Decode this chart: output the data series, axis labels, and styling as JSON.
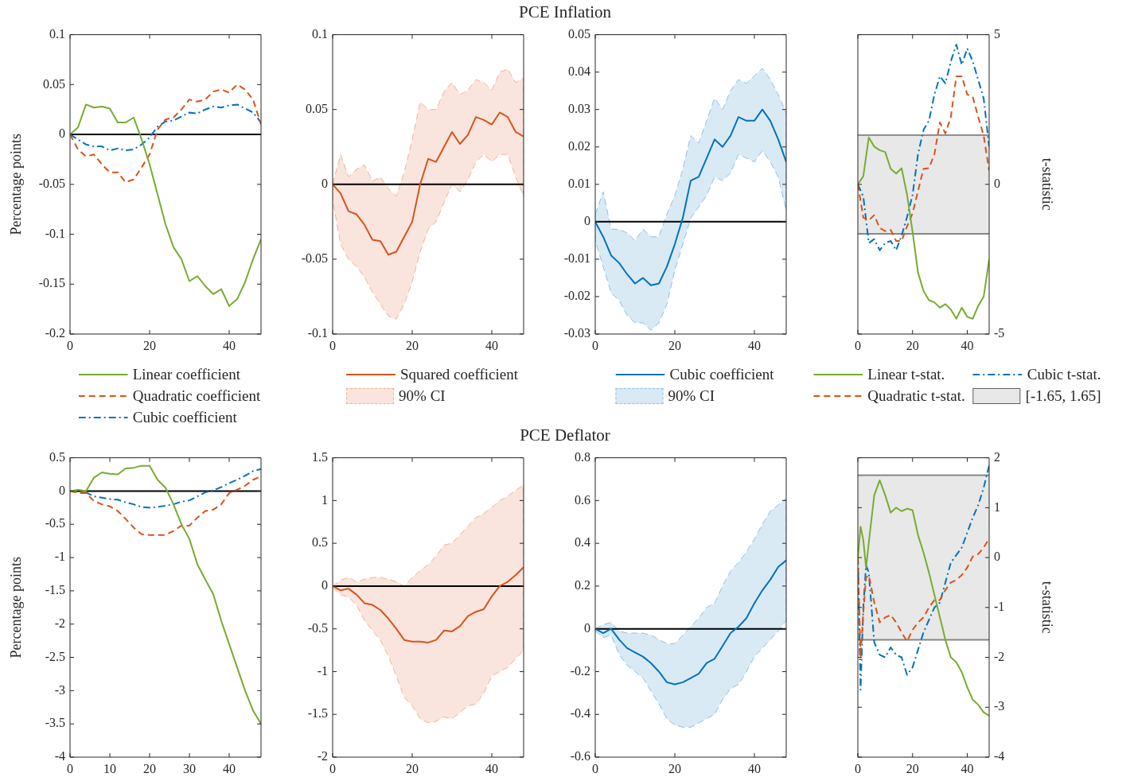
{
  "chart_data": [
    {
      "type": "line",
      "ylabel": "Percentage points",
      "x": [
        0,
        2,
        4,
        6,
        8,
        10,
        12,
        14,
        16,
        18,
        20,
        22,
        24,
        26,
        28,
        30,
        32,
        34,
        36,
        38,
        40,
        42,
        44,
        46,
        48
      ],
      "xlim": [
        0,
        48
      ],
      "xticks": [
        0,
        20,
        40
      ],
      "ylim": [
        -0.2,
        0.1
      ],
      "yticks": [
        -0.2,
        -0.15,
        -0.1,
        -0.05,
        0,
        0.05,
        0.1
      ],
      "legend": "bottom",
      "ref_lines": [
        {
          "axis": "y",
          "value": 0,
          "color": "#000000"
        }
      ],
      "series": [
        {
          "name": "Linear coefficient",
          "color": "#77ac30",
          "line_style": "solid",
          "values": [
            0,
            0.007,
            0.03,
            0.027,
            0.028,
            0.026,
            0.012,
            0.012,
            0.017,
            -0.005,
            -0.03,
            -0.06,
            -0.09,
            -0.113,
            -0.125,
            -0.147,
            -0.142,
            -0.152,
            -0.16,
            -0.155,
            -0.172,
            -0.165,
            -0.148,
            -0.125,
            -0.105
          ]
        },
        {
          "name": "Quadratic coefficient",
          "color": "#d95319",
          "line_style": "dashed",
          "values": [
            0,
            -0.015,
            -0.022,
            -0.02,
            -0.03,
            -0.038,
            -0.038,
            -0.048,
            -0.045,
            -0.033,
            -0.02,
            0.005,
            0.015,
            0.017,
            0.025,
            0.035,
            0.033,
            0.035,
            0.043,
            0.045,
            0.042,
            0.05,
            0.045,
            0.035,
            0.01
          ]
        },
        {
          "name": "Cubic coefficient",
          "color": "#0072bd",
          "line_style": "dashdot",
          "values": [
            0,
            -0.005,
            -0.01,
            -0.012,
            -0.012,
            -0.016,
            -0.014,
            -0.016,
            -0.015,
            -0.01,
            -0.003,
            0.008,
            0.013,
            0.014,
            0.018,
            0.022,
            0.021,
            0.025,
            0.028,
            0.027,
            0.029,
            0.03,
            0.026,
            0.022,
            0.012
          ]
        }
      ]
    },
    {
      "type": "line",
      "title": "PCE Inflation",
      "x": [
        0,
        2,
        4,
        6,
        8,
        10,
        12,
        14,
        16,
        18,
        20,
        22,
        24,
        26,
        28,
        30,
        32,
        34,
        36,
        38,
        40,
        42,
        44,
        46,
        48
      ],
      "xlim": [
        0,
        48
      ],
      "xticks": [
        0,
        20,
        40
      ],
      "ylim": [
        -0.1,
        0.1
      ],
      "yticks": [
        -0.1,
        -0.05,
        0,
        0.05,
        0.1
      ],
      "legend": "bottom",
      "annotations": [
        "90% CI"
      ],
      "ref_lines": [
        {
          "axis": "y",
          "value": 0,
          "color": "#000000"
        }
      ],
      "series": [
        {
          "name": "Squared coefficient",
          "color": "#d95319",
          "line_style": "solid",
          "values": [
            0,
            -0.006,
            -0.018,
            -0.02,
            -0.027,
            -0.037,
            -0.038,
            -0.047,
            -0.045,
            -0.035,
            -0.025,
            0,
            0.017,
            0.015,
            0.025,
            0.035,
            0.027,
            0.033,
            0.045,
            0.043,
            0.04,
            0.048,
            0.045,
            0.035,
            0.032
          ],
          "lower": [
            -0.01,
            -0.04,
            -0.05,
            -0.055,
            -0.062,
            -0.072,
            -0.08,
            -0.088,
            -0.09,
            -0.08,
            -0.065,
            -0.045,
            -0.03,
            -0.025,
            -0.012,
            0,
            -0.005,
            0.003,
            0.015,
            0.02,
            0.015,
            0.02,
            0.02,
            0.005,
            -0.008
          ],
          "upper": [
            0,
            0.02,
            0.005,
            0.01,
            0.013,
            0.002,
            0.005,
            -0.003,
            -0.008,
            0.008,
            0.03,
            0.055,
            0.05,
            0.05,
            0.062,
            0.068,
            0.06,
            0.063,
            0.07,
            0.068,
            0.063,
            0.075,
            0.077,
            0.068,
            0.071
          ]
        }
      ]
    },
    {
      "type": "line",
      "x": [
        0,
        2,
        4,
        6,
        8,
        10,
        12,
        14,
        16,
        18,
        20,
        22,
        24,
        26,
        28,
        30,
        32,
        34,
        36,
        38,
        40,
        42,
        44,
        46,
        48
      ],
      "xlim": [
        0,
        48
      ],
      "xticks": [
        0,
        20,
        40
      ],
      "ylim": [
        -0.03,
        0.05
      ],
      "yticks": [
        -0.03,
        -0.02,
        -0.01,
        0,
        0.01,
        0.02,
        0.03,
        0.04,
        0.05
      ],
      "legend": "bottom",
      "annotations": [
        "90% CI"
      ],
      "ref_lines": [
        {
          "axis": "y",
          "value": 0,
          "color": "#000000"
        }
      ],
      "series": [
        {
          "name": "Cubic coefficient",
          "color": "#0072bd",
          "line_style": "solid",
          "values": [
            0,
            -0.004,
            -0.009,
            -0.011,
            -0.014,
            -0.0165,
            -0.015,
            -0.017,
            -0.0165,
            -0.012,
            -0.006,
            0.001,
            0.011,
            0.012,
            0.017,
            0.022,
            0.02,
            0.023,
            0.028,
            0.027,
            0.027,
            0.03,
            0.027,
            0.022,
            0.016
          ],
          "lower": [
            -0.005,
            -0.012,
            -0.019,
            -0.021,
            -0.025,
            -0.027,
            -0.027,
            -0.029,
            -0.027,
            -0.022,
            -0.013,
            -0.006,
            0.001,
            0.004,
            0.007,
            0.012,
            0.011,
            0.013,
            0.018,
            0.017,
            0.016,
            0.019,
            0.016,
            0.012,
            0.003
          ],
          "upper": [
            0.002,
            0.008,
            -0.002,
            -0.002,
            -0.003,
            -0.005,
            -0.002,
            -0.004,
            -0.004,
            0.002,
            0.007,
            0.014,
            0.023,
            0.021,
            0.027,
            0.033,
            0.03,
            0.035,
            0.038,
            0.037,
            0.039,
            0.041,
            0.038,
            0.034,
            0.029
          ]
        }
      ]
    },
    {
      "type": "line",
      "ylabel": "t-statistic",
      "x": [
        0,
        2,
        4,
        6,
        8,
        10,
        12,
        14,
        16,
        18,
        20,
        22,
        24,
        26,
        28,
        30,
        32,
        34,
        36,
        38,
        40,
        42,
        44,
        46,
        48
      ],
      "xlim": [
        0,
        48
      ],
      "xticks": [
        0,
        20,
        40
      ],
      "ylim": [
        -5,
        5
      ],
      "yticks": [
        -5,
        0,
        5
      ],
      "legend": "bottom",
      "bands": [
        {
          "axis": "y",
          "from": -1.65,
          "to": 1.65,
          "label": "[-1.65, 1.65]",
          "color": "#e8e8e8"
        }
      ],
      "ref_lines": [
        {
          "axis": "y",
          "value": -1.65,
          "color": "#808080"
        },
        {
          "axis": "y",
          "value": 1.65,
          "color": "#808080"
        }
      ],
      "series": [
        {
          "name": "Linear t-stat.",
          "color": "#77ac30",
          "line_style": "solid",
          "values": [
            0,
            0.27,
            1.57,
            1.26,
            1.14,
            1.08,
            0.52,
            0.36,
            0.54,
            -0.35,
            -1.58,
            -2.95,
            -3.56,
            -3.87,
            -3.94,
            -4.12,
            -4,
            -4.18,
            -4.49,
            -4.12,
            -4.43,
            -4.49,
            -4.06,
            -3.75,
            -2.51
          ]
        },
        {
          "name": "Quadratic t-stat.",
          "color": "#d95319",
          "line_style": "dashed",
          "values": [
            0,
            -1.11,
            -1.2,
            -1.03,
            -1.46,
            -1.56,
            -1.52,
            -1.89,
            -1.89,
            -1.4,
            -0.97,
            -0.22,
            0.52,
            0.54,
            1.01,
            2.07,
            1.7,
            2.25,
            3.61,
            3.61,
            3,
            2.93,
            2.25,
            1.63,
            0.46
          ]
        },
        {
          "name": "Cubic t-stat.",
          "color": "#0072bd",
          "line_style": "dashdot",
          "values": [
            0,
            -0.41,
            -1.96,
            -1.83,
            -2.2,
            -1.96,
            -1.89,
            -2.2,
            -1.71,
            -1.09,
            -0.35,
            1.01,
            1.82,
            2.13,
            3,
            3.61,
            3.37,
            4.11,
            4.67,
            3.99,
            4.54,
            4.11,
            3.49,
            2.87,
            1.26
          ]
        }
      ]
    },
    {
      "type": "line",
      "ylabel": "Percentage points",
      "x": [
        0,
        2,
        4,
        6,
        8,
        10,
        12,
        14,
        16,
        18,
        20,
        22,
        24,
        26,
        28,
        30,
        32,
        34,
        36,
        38,
        40,
        42,
        44,
        46,
        48
      ],
      "xlim": [
        0,
        48
      ],
      "xticks": [
        0,
        10,
        20,
        30,
        40
      ],
      "ylim": [
        -4,
        0.5
      ],
      "yticks": [
        -4,
        -3.5,
        -3,
        -2.5,
        -2,
        -1.5,
        -1,
        -0.5,
        0,
        0.5
      ],
      "ref_lines": [
        {
          "axis": "y",
          "value": 0,
          "color": "#000000"
        }
      ],
      "series": [
        {
          "color": "#77ac30",
          "line_style": "solid",
          "values": [
            0,
            0.02,
            0,
            0.2,
            0.28,
            0.26,
            0.25,
            0.34,
            0.35,
            0.38,
            0.38,
            0.17,
            0.05,
            -0.2,
            -0.5,
            -0.72,
            -1.1,
            -1.33,
            -1.55,
            -1.95,
            -2.3,
            -2.65,
            -3,
            -3.3,
            -3.5
          ]
        },
        {
          "color": "#d95319",
          "line_style": "dashed",
          "values": [
            0,
            -0.03,
            -0.03,
            -0.15,
            -0.2,
            -0.23,
            -0.3,
            -0.42,
            -0.55,
            -0.65,
            -0.66,
            -0.66,
            -0.66,
            -0.6,
            -0.52,
            -0.52,
            -0.4,
            -0.3,
            -0.28,
            -0.2,
            -0.03,
            0.02,
            0.08,
            0.17,
            0.22
          ]
        },
        {
          "color": "#0072bd",
          "line_style": "dashdot",
          "values": [
            0,
            0,
            -0.02,
            -0.08,
            -0.1,
            -0.12,
            -0.13,
            -0.17,
            -0.2,
            -0.24,
            -0.25,
            -0.24,
            -0.22,
            -0.2,
            -0.16,
            -0.14,
            -0.08,
            -0.02,
            0.01,
            0.06,
            0.12,
            0.17,
            0.23,
            0.3,
            0.33
          ]
        }
      ]
    },
    {
      "type": "line",
      "title": "PCE Deflator",
      "x": [
        0,
        2,
        4,
        6,
        8,
        10,
        12,
        14,
        16,
        18,
        20,
        22,
        24,
        26,
        28,
        30,
        32,
        34,
        36,
        38,
        40,
        42,
        44,
        46,
        48
      ],
      "xlim": [
        0,
        48
      ],
      "xticks": [
        0,
        20,
        40
      ],
      "ylim": [
        -2,
        1.5
      ],
      "yticks": [
        -2,
        -1.5,
        -1,
        -0.5,
        0,
        0.5,
        1,
        1.5
      ],
      "ref_lines": [
        {
          "axis": "y",
          "value": 0,
          "color": "#000000"
        }
      ],
      "series": [
        {
          "color": "#d95319",
          "line_style": "solid",
          "values": [
            0,
            -0.05,
            -0.03,
            -0.1,
            -0.2,
            -0.22,
            -0.28,
            -0.38,
            -0.5,
            -0.63,
            -0.65,
            -0.65,
            -0.66,
            -0.63,
            -0.52,
            -0.53,
            -0.47,
            -0.35,
            -0.3,
            -0.27,
            -0.12,
            0,
            0.05,
            0.13,
            0.22
          ],
          "lower": [
            -0.02,
            -0.1,
            -0.13,
            -0.22,
            -0.4,
            -0.52,
            -0.63,
            -0.82,
            -1.05,
            -1.3,
            -1.4,
            -1.55,
            -1.6,
            -1.58,
            -1.53,
            -1.55,
            -1.48,
            -1.4,
            -1.38,
            -1.25,
            -1.05,
            -1,
            -0.95,
            -0.85,
            -0.75
          ],
          "upper": [
            0,
            0.07,
            0.1,
            0.05,
            0.08,
            0.1,
            0.1,
            0.08,
            0.05,
            0,
            0.1,
            0.18,
            0.25,
            0.35,
            0.48,
            0.5,
            0.6,
            0.7,
            0.8,
            0.85,
            0.92,
            1,
            1.05,
            1.12,
            1.18
          ]
        }
      ]
    },
    {
      "type": "line",
      "x": [
        0,
        2,
        4,
        6,
        8,
        10,
        12,
        14,
        16,
        18,
        20,
        22,
        24,
        26,
        28,
        30,
        32,
        34,
        36,
        38,
        40,
        42,
        44,
        46,
        48
      ],
      "xlim": [
        0,
        48
      ],
      "xticks": [
        0,
        20,
        40
      ],
      "ylim": [
        -0.6,
        0.8
      ],
      "yticks": [
        -0.6,
        -0.4,
        -0.2,
        0,
        0.2,
        0.4,
        0.6,
        0.8
      ],
      "ref_lines": [
        {
          "axis": "y",
          "value": 0,
          "color": "#000000"
        }
      ],
      "series": [
        {
          "color": "#0072bd",
          "line_style": "solid",
          "values": [
            0,
            -0.02,
            0,
            -0.05,
            -0.09,
            -0.11,
            -0.13,
            -0.16,
            -0.2,
            -0.25,
            -0.26,
            -0.25,
            -0.23,
            -0.21,
            -0.16,
            -0.14,
            -0.08,
            -0.02,
            0.01,
            0.05,
            0.12,
            0.18,
            0.23,
            0.29,
            0.32
          ],
          "lower": [
            -0.01,
            -0.04,
            -0.03,
            -0.12,
            -0.17,
            -0.2,
            -0.23,
            -0.29,
            -0.35,
            -0.42,
            -0.45,
            -0.46,
            -0.46,
            -0.44,
            -0.42,
            -0.4,
            -0.33,
            -0.28,
            -0.26,
            -0.2,
            -0.13,
            -0.09,
            -0.05,
            -0.01,
            0.04
          ],
          "upper": [
            0,
            0.02,
            0.03,
            -0.01,
            -0.02,
            -0.02,
            -0.02,
            -0.03,
            -0.05,
            -0.07,
            -0.07,
            -0.03,
            0.01,
            0.05,
            0.1,
            0.12,
            0.2,
            0.27,
            0.31,
            0.36,
            0.42,
            0.49,
            0.55,
            0.58,
            0.61
          ]
        }
      ]
    },
    {
      "type": "line",
      "ylabel": "t-statistic",
      "x": [
        0,
        1,
        2,
        3,
        4,
        6,
        8,
        10,
        12,
        14,
        16,
        18,
        20,
        22,
        24,
        26,
        28,
        30,
        32,
        34,
        36,
        38,
        40,
        42,
        44,
        46,
        48
      ],
      "xlim": [
        0,
        48
      ],
      "xticks": [
        0,
        20,
        40
      ],
      "ylim": [
        -4,
        2
      ],
      "yticks": [
        -4,
        -3,
        -2,
        -1,
        0,
        1,
        2
      ],
      "bands": [
        {
          "axis": "y",
          "from": -1.65,
          "to": 1.65,
          "color": "#e8e8e8"
        }
      ],
      "ref_lines": [
        {
          "axis": "y",
          "value": -1.65,
          "color": "#808080"
        },
        {
          "axis": "y",
          "value": 1.65,
          "color": "#808080"
        }
      ],
      "series": [
        {
          "color": "#77ac30",
          "line_style": "solid",
          "values": [
            0,
            0.62,
            0.35,
            -0.2,
            0.3,
            1.25,
            1.55,
            1.25,
            0.9,
            1,
            0.93,
            0.98,
            0.95,
            0.45,
            0.1,
            -0.3,
            -0.75,
            -1.2,
            -1.65,
            -2,
            -2.1,
            -2.3,
            -2.6,
            -2.85,
            -2.95,
            -3.1,
            -3.17
          ]
        },
        {
          "color": "#d95319",
          "line_style": "dashed",
          "values": [
            0,
            -2,
            -1.1,
            -0.4,
            -0.35,
            -0.9,
            -1.3,
            -1.2,
            -1.15,
            -1.3,
            -1.5,
            -1.68,
            -1.45,
            -1.3,
            -1.2,
            -1,
            -0.85,
            -0.85,
            -0.65,
            -0.5,
            -0.45,
            -0.35,
            -0.2,
            0.02,
            0.07,
            0.2,
            0.38
          ]
        },
        {
          "color": "#0072bd",
          "line_style": "dashdot",
          "values": [
            0,
            -2.65,
            -1,
            -0.15,
            -0.3,
            -1.7,
            -1.95,
            -2,
            -1.8,
            -1.95,
            -2,
            -2.35,
            -2.2,
            -1.85,
            -1.5,
            -1.25,
            -1,
            -0.9,
            -0.5,
            -0.1,
            0.05,
            0.2,
            0.5,
            0.8,
            1.05,
            1.4,
            1.85
          ]
        }
      ]
    }
  ]
}
